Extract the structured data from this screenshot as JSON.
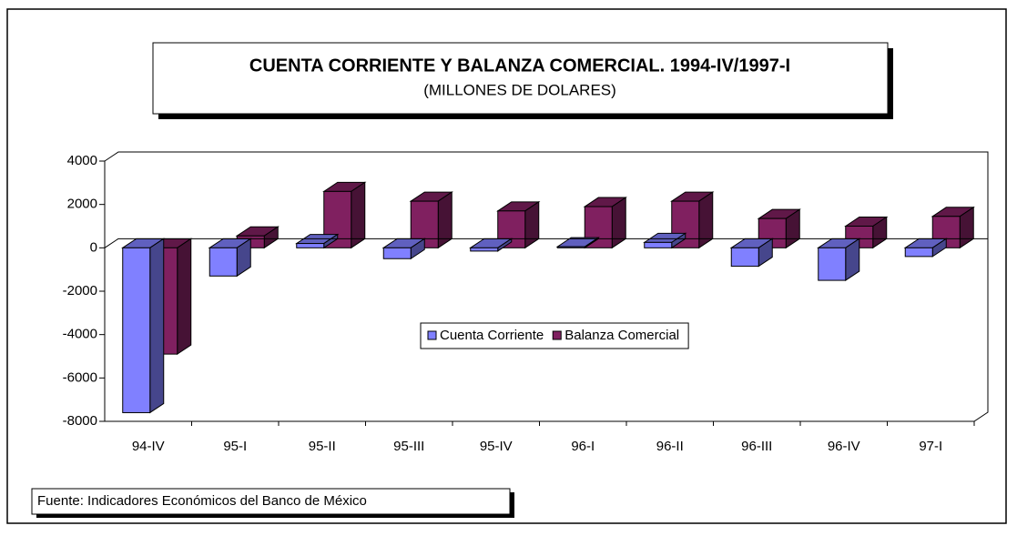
{
  "chart_data": {
    "type": "bar3d",
    "title": "CUENTA CORRIENTE Y BALANZA COMERCIAL. 1994-IV/1997-I",
    "subtitle": "(MILLONES DE DOLARES)",
    "source": "Fuente: Indicadores Económicos del Banco de México",
    "categories": [
      "94-IV",
      "95-I",
      "95-II",
      "95-III",
      "95-IV",
      "96-I",
      "96-II",
      "96-III",
      "96-IV",
      "97-I"
    ],
    "series": [
      {
        "name": "Cuenta Corriente",
        "color": "#8080ff",
        "values": [
          -7600,
          -1300,
          200,
          -500,
          -150,
          50,
          250,
          -850,
          -1500,
          -400
        ]
      },
      {
        "name": "Balanza Comercial",
        "color": "#802060",
        "values": [
          -4900,
          550,
          2600,
          2150,
          1700,
          1900,
          2150,
          1350,
          1000,
          1450
        ]
      }
    ],
    "ylim": [
      -8000,
      4000
    ],
    "yticks": [
      4000,
      2000,
      0,
      -2000,
      -4000,
      -6000,
      -8000
    ]
  }
}
